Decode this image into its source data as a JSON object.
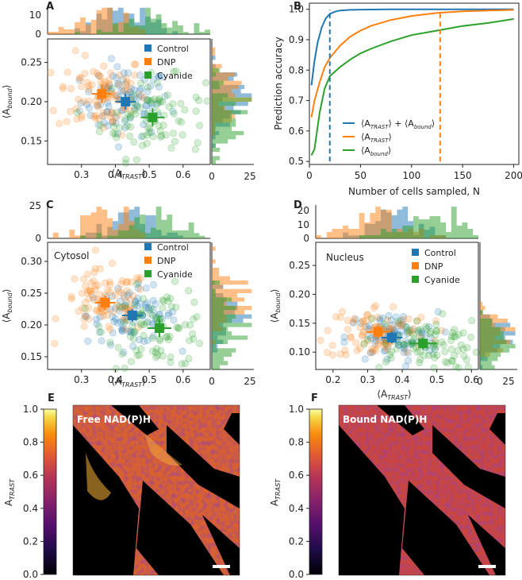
{
  "colors": {
    "control": "#1f77b4",
    "dnp": "#ff7f0e",
    "cyanide": "#2ca02c"
  },
  "chart_data": [
    {
      "panel": "A",
      "type": "scatter",
      "xlabel": "⟨A_TRAST⟩",
      "ylabel": "⟨A_bound⟩",
      "xlim": [
        0.2,
        0.68
      ],
      "ylim": [
        0.12,
        0.28
      ],
      "xticks": [
        "0.3",
        "0.4",
        "0.5",
        "0.6"
      ],
      "yticks": [
        "0.15",
        "0.20",
        "0.25"
      ],
      "top_hist_yticks": [
        "0",
        "10"
      ],
      "right_hist_xticks": [
        "0",
        "25"
      ],
      "legend": [
        "Control",
        "DNP",
        "Cyanide"
      ],
      "series": [
        {
          "name": "Control",
          "color": "#1f77b4",
          "center": [
            0.43,
            0.2
          ],
          "err_x": 0.06,
          "err_y": 0.02
        },
        {
          "name": "DNP",
          "color": "#ff7f0e",
          "center": [
            0.36,
            0.21
          ],
          "err_x": 0.06,
          "err_y": 0.023
        },
        {
          "name": "Cyanide",
          "color": "#2ca02c",
          "center": [
            0.51,
            0.18
          ],
          "err_x": 0.07,
          "err_y": 0.023
        }
      ]
    },
    {
      "panel": "B",
      "type": "line",
      "xlabel": "Number of cells sampled, N",
      "ylabel": "Prediction accuracy",
      "xlim": [
        0,
        205
      ],
      "ylim": [
        0.49,
        1.02
      ],
      "xticks": [
        "0",
        "50",
        "100",
        "150",
        "200"
      ],
      "yticks": [
        "0.5",
        "0.6",
        "0.7",
        "0.8",
        "0.9",
        "1.0"
      ],
      "series": [
        {
          "name": "⟨A_TRAST⟩ + ⟨A_bound⟩",
          "color": "#1f77b4",
          "x": [
            2,
            5,
            8,
            12,
            16,
            20,
            25,
            30,
            40,
            60,
            80,
            100,
            150,
            200
          ],
          "y": [
            0.75,
            0.83,
            0.89,
            0.94,
            0.97,
            0.985,
            0.992,
            0.996,
            0.998,
            0.999,
            1.0,
            1.0,
            1.0,
            1.0
          ]
        },
        {
          "name": "⟨A_TRAST⟩",
          "color": "#ff7f0e",
          "x": [
            2,
            5,
            10,
            15,
            20,
            30,
            40,
            50,
            60,
            80,
            100,
            125,
            150,
            175,
            200
          ],
          "y": [
            0.645,
            0.7,
            0.76,
            0.81,
            0.84,
            0.88,
            0.91,
            0.93,
            0.945,
            0.965,
            0.978,
            0.988,
            0.993,
            0.996,
            0.998
          ]
        },
        {
          "name": "⟨A_bound⟩",
          "color": "#2ca02c",
          "x": [
            2,
            5,
            10,
            15,
            20,
            30,
            40,
            50,
            60,
            80,
            100,
            125,
            150,
            175,
            200
          ],
          "y": [
            0.52,
            0.54,
            0.66,
            0.74,
            0.78,
            0.81,
            0.835,
            0.855,
            0.87,
            0.895,
            0.915,
            0.93,
            0.945,
            0.955,
            0.968
          ]
        }
      ],
      "vlines": [
        {
          "x": 20,
          "color": "#1f77b4"
        },
        {
          "x": 128,
          "color": "#ff7f0e"
        }
      ]
    },
    {
      "panel": "C",
      "type": "scatter",
      "inset_label": "Cytosol",
      "xlabel": "⟨A_TRAST⟩",
      "ylabel": "⟨A_bound⟩",
      "xlim": [
        0.2,
        0.68
      ],
      "ylim": [
        0.13,
        0.33
      ],
      "xticks": [
        "0.3",
        "0.4",
        "0.5",
        "0.6"
      ],
      "yticks": [
        "0.15",
        "0.20",
        "0.25",
        "0.30"
      ],
      "top_hist_yticks": [
        "0",
        "25"
      ],
      "right_hist_xticks": [
        "0",
        "25"
      ],
      "legend": [
        "Control",
        "DNP",
        "Cyanide"
      ],
      "series": [
        {
          "name": "Control",
          "color": "#1f77b4",
          "center": [
            0.45,
            0.215
          ],
          "err_x": 0.06,
          "err_y": 0.02
        },
        {
          "name": "DNP",
          "color": "#ff7f0e",
          "center": [
            0.37,
            0.235
          ],
          "err_x": 0.06,
          "err_y": 0.023
        },
        {
          "name": "Cyanide",
          "color": "#2ca02c",
          "center": [
            0.53,
            0.195
          ],
          "err_x": 0.07,
          "err_y": 0.028
        }
      ]
    },
    {
      "panel": "D",
      "type": "scatter",
      "inset_label": "Nucleus",
      "xlabel": "⟨A_TRAST⟩",
      "ylabel": "⟨A_bound⟩",
      "xlim": [
        0.15,
        0.62
      ],
      "ylim": [
        0.07,
        0.29
      ],
      "xticks": [
        "0.2",
        "0.3",
        "0.4",
        "0.5",
        "0.6"
      ],
      "yticks": [
        "0.10",
        "0.15",
        "0.20",
        "0.25"
      ],
      "top_hist_yticks": [
        "0",
        "10",
        "20"
      ],
      "right_hist_xticks": [
        "0",
        "25"
      ],
      "legend": [
        "Control",
        "DNP",
        "Cyanide"
      ],
      "series": [
        {
          "name": "Control",
          "color": "#1f77b4",
          "center": [
            0.37,
            0.125
          ],
          "err_x": 0.06,
          "err_y": 0.02
        },
        {
          "name": "DNP",
          "color": "#ff7f0e",
          "center": [
            0.33,
            0.135
          ],
          "err_x": 0.07,
          "err_y": 0.022
        },
        {
          "name": "Cyanide",
          "color": "#2ca02c",
          "center": [
            0.46,
            0.115
          ],
          "err_x": 0.08,
          "err_y": 0.02
        }
      ]
    },
    {
      "panel": "E",
      "type": "heatmap",
      "title": "Free NAD(P)H",
      "colorbar_label": "A_TRAST",
      "colorbar_ticks": [
        "0.0",
        "0.2",
        "0.4",
        "0.6",
        "0.8",
        "1.0"
      ],
      "clim": [
        0,
        1
      ]
    },
    {
      "panel": "F",
      "type": "heatmap",
      "title": "Bound NAD(P)H",
      "colorbar_label": "A_TRAST",
      "colorbar_ticks": [
        "0.0",
        "0.2",
        "0.4",
        "0.6",
        "0.8",
        "1.0"
      ],
      "clim": [
        0,
        1
      ]
    }
  ]
}
